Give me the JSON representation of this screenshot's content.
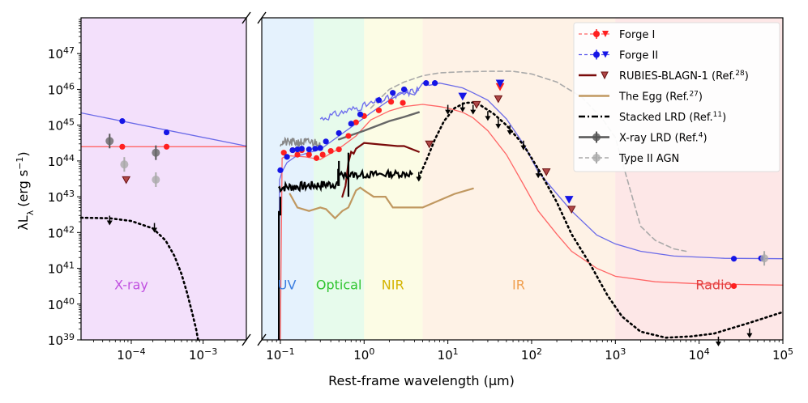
{
  "chart_data": {
    "type": "sed",
    "title": "",
    "xlabel": "Rest-frame wavelength (μm)",
    "ylabel": "λL",
    "ylabel_sub": "λ",
    "ylabel_units": "(erg s",
    "ylabel_exp": "−1",
    "ylabel_close": ")",
    "xscale": "log",
    "yscale": "log",
    "ylim": [
      1e+39,
      1e+48
    ],
    "left_panel": {
      "xlim": [
        2e-05,
        0.004
      ]
    },
    "right_panel": {
      "xlim": [
        0.06,
        100000
      ]
    },
    "y_ticks": [
      {
        "value": 39,
        "base": "10",
        "exp": "39"
      },
      {
        "value": 40,
        "base": "10",
        "exp": "40"
      },
      {
        "value": 41,
        "base": "10",
        "exp": "41"
      },
      {
        "value": 42,
        "base": "10",
        "exp": "42"
      },
      {
        "value": 43,
        "base": "10",
        "exp": "43"
      },
      {
        "value": 44,
        "base": "10",
        "exp": "44"
      },
      {
        "value": 45,
        "base": "10",
        "exp": "45"
      },
      {
        "value": 46,
        "base": "10",
        "exp": "46"
      },
      {
        "value": 47,
        "base": "10",
        "exp": "47"
      }
    ],
    "left_x_ticks": [
      {
        "value": -4,
        "base": "10",
        "exp": "−4"
      },
      {
        "value": -3,
        "base": "10",
        "exp": "−3"
      }
    ],
    "right_x_ticks": [
      {
        "value": -1,
        "base": "10",
        "exp": "−1"
      },
      {
        "value": 0,
        "base": "10",
        "exp": "0"
      },
      {
        "value": 1,
        "base": "10",
        "exp": "1"
      },
      {
        "value": 2,
        "base": "10",
        "exp": "2"
      },
      {
        "value": 3,
        "base": "10",
        "exp": "3"
      },
      {
        "value": 4,
        "base": "10",
        "exp": "4"
      },
      {
        "value": 5,
        "base": "10",
        "exp": "5"
      }
    ],
    "bands": [
      {
        "name": "X-ray",
        "panel": "left",
        "x0": 2e-05,
        "x1": 0.004,
        "color": "#e9c7f7",
        "text_color": "#c04fe0",
        "label_x": 0.0001,
        "label_y": 3.5e+40
      },
      {
        "name": "UV",
        "panel": "right",
        "x0": 0.06,
        "x1": 0.25,
        "color": "#cfe7fb",
        "text_color": "#3b7ee0",
        "label_x": 0.12,
        "label_y": 3.5e+40
      },
      {
        "name": "Optical",
        "panel": "right",
        "x0": 0.25,
        "x1": 1.0,
        "color": "#d4f8dc",
        "text_color": "#2ec42e",
        "label_x": 0.5,
        "label_y": 3.5e+40
      },
      {
        "name": "NIR",
        "panel": "right",
        "x0": 1.0,
        "x1": 5.0,
        "color": "#fafad0",
        "text_color": "#d4b400",
        "label_x": 2.2,
        "label_y": 3.5e+40
      },
      {
        "name": "IR",
        "panel": "right",
        "x0": 5.0,
        "x1": 1000,
        "color": "#fde8d2",
        "text_color": "#f0a050",
        "label_x": 70,
        "label_y": 3.5e+40
      },
      {
        "name": "Radio",
        "panel": "right",
        "x0": 1000,
        "x1": 100000,
        "color": "#fcd3d3",
        "text_color": "#e04040",
        "label_x": 15000,
        "label_y": 3.5e+40
      }
    ],
    "legend": [
      {
        "label": "Forge I",
        "sup": "",
        "color": "#ff2020",
        "kind": "forge"
      },
      {
        "label": "Forge II",
        "sup": "",
        "color": "#1515e6",
        "kind": "forge"
      },
      {
        "label": "RUBIES-BLAGN-1 (Ref.",
        "sup": "28",
        "close": ")",
        "color": "#7a0a0a",
        "kind": "rubies"
      },
      {
        "label": "The Egg (Ref.",
        "sup": "27",
        "close": ")",
        "color": "#c09860",
        "kind": "line"
      },
      {
        "label": "Stacked LRD (Ref.",
        "sup": "11",
        "close": ")",
        "color": "#000000",
        "kind": "dashdot"
      },
      {
        "label": "X-ray LRD (Ref.",
        "sup": "4",
        "close": ")",
        "color": "#555555",
        "kind": "errpoint"
      },
      {
        "label": "Type II AGN",
        "sup": "",
        "close": "",
        "color": "#aaaaaa",
        "kind": "dashedpoint"
      }
    ],
    "series": [
      {
        "name": "Forge II model left",
        "panel": "left",
        "color": "#6a6ae8",
        "type": "line",
        "points": [
          [
            2e-05,
            2.2e+45
          ],
          [
            0.004,
            2.6e+44
          ]
        ]
      },
      {
        "name": "Forge I model left",
        "panel": "left",
        "color": "#ff6666",
        "type": "line",
        "points": [
          [
            2e-05,
            2.5e+44
          ],
          [
            0.004,
            2.5e+44
          ]
        ]
      },
      {
        "name": "Stacked LRD left",
        "panel": "left",
        "color": "#000000",
        "type": "dotted",
        "points": [
          [
            2e-05,
            2.6e+42
          ],
          [
            5e-05,
            2.5e+42
          ],
          [
            0.0001,
            2.1e+42
          ],
          [
            0.0002,
            1.3e+42
          ],
          [
            0.0003,
            6e+41
          ],
          [
            0.0004,
            2.2e+41
          ],
          [
            0.0005,
            7e+40
          ],
          [
            0.0006,
            2e+40
          ],
          [
            0.0007,
            6e+39
          ],
          [
            0.0008,
            2e+39
          ],
          [
            0.00085,
            1e+39
          ]
        ]
      },
      {
        "name": "Forge II model",
        "panel": "right",
        "color": "#6a6ae8",
        "type": "line",
        "points": [
          [
            0.09,
            1e+39
          ],
          [
            0.095,
            1e+39
          ],
          [
            0.098,
            3e+43
          ],
          [
            0.105,
            5e+43
          ],
          [
            0.12,
            9e+43
          ],
          [
            0.15,
            1.3e+44
          ],
          [
            0.2,
            1.6e+44
          ],
          [
            0.3,
            2.1e+44
          ],
          [
            0.5,
            5e+44
          ],
          [
            0.8,
            1.1e+45
          ],
          [
            1.2,
            2.2e+45
          ],
          [
            2,
            5e+45
          ],
          [
            3,
            8.5e+45
          ],
          [
            4,
            7e+45
          ],
          [
            5,
            1.5e+46
          ],
          [
            6,
            1.3e+46
          ],
          [
            8,
            1.5e+46
          ],
          [
            10,
            1.35e+46
          ],
          [
            15,
            1.1e+46
          ],
          [
            20,
            8e+45
          ],
          [
            30,
            5e+45
          ],
          [
            50,
            1.5e+45
          ],
          [
            80,
            3e+44
          ],
          [
            120,
            5e+43
          ],
          [
            200,
            1.2e+43
          ],
          [
            300,
            4e+42
          ],
          [
            600,
            8.5e+41
          ],
          [
            1000,
            4.8e+41
          ],
          [
            2000,
            3e+41
          ],
          [
            5000,
            2.2e+41
          ],
          [
            20000,
            1.9e+41
          ],
          [
            100000,
            1.85e+41
          ]
        ]
      },
      {
        "name": "Forge I model",
        "panel": "right",
        "color": "#ff6666",
        "type": "line",
        "points": [
          [
            0.1,
            1e+39
          ],
          [
            0.105,
            1.2e+44
          ],
          [
            0.12,
            1.4e+44
          ],
          [
            0.2,
            1.3e+44
          ],
          [
            0.3,
            1.1e+44
          ],
          [
            0.5,
            2.2e+44
          ],
          [
            0.8,
            5e+44
          ],
          [
            1.2,
            1.4e+45
          ],
          [
            2,
            2.5e+45
          ],
          [
            3,
            3.3e+45
          ],
          [
            5,
            3.8e+45
          ],
          [
            8,
            3.3e+45
          ],
          [
            10,
            3e+45
          ],
          [
            15,
            2.3e+45
          ],
          [
            20,
            1.6e+45
          ],
          [
            30,
            7e+44
          ],
          [
            50,
            1.5e+44
          ],
          [
            80,
            2.2e+43
          ],
          [
            120,
            4e+42
          ],
          [
            200,
            9e+41
          ],
          [
            300,
            3e+41
          ],
          [
            600,
            1e+41
          ],
          [
            1000,
            6e+40
          ],
          [
            3000,
            4.2e+40
          ],
          [
            10000,
            3.7e+40
          ],
          [
            100000,
            3.4e+40
          ]
        ]
      },
      {
        "name": "Type II AGN",
        "panel": "right",
        "color": "#aaaaaa",
        "type": "dashed",
        "points": [
          [
            1.2,
            3e+45
          ],
          [
            1.6,
            6e+45
          ],
          [
            2,
            1e+46
          ],
          [
            3,
            1.6e+46
          ],
          [
            5,
            2.4e+46
          ],
          [
            8,
            2.9e+46
          ],
          [
            15,
            3.1e+46
          ],
          [
            30,
            3.2e+46
          ],
          [
            60,
            3.2e+46
          ],
          [
            100,
            2.7e+46
          ],
          [
            200,
            1.6e+46
          ],
          [
            400,
            6e+45
          ],
          [
            700,
            1.5e+45
          ],
          [
            1000,
            4.5e+44
          ],
          [
            2000,
            1.5e+42
          ],
          [
            3000,
            6e+41
          ],
          [
            5000,
            3.5e+41
          ],
          [
            7000,
            3e+41
          ]
        ]
      },
      {
        "name": "RUBIES-BLAGN-1",
        "panel": "right",
        "color": "#7a0a0a",
        "type": "line",
        "points": [
          [
            0.55,
            1e+43
          ],
          [
            0.6,
            2e+43
          ],
          [
            0.65,
            9e+43
          ],
          [
            0.7,
            1.8e+44
          ],
          [
            0.75,
            1.6e+44
          ],
          [
            0.8,
            2.2e+44
          ],
          [
            1.0,
            3.2e+44
          ],
          [
            1.5,
            2.9e+44
          ],
          [
            2.5,
            2.6e+44
          ],
          [
            3,
            2.6e+44
          ],
          [
            4.5,
            1.8e+44
          ]
        ]
      },
      {
        "name": "The Egg",
        "panel": "right",
        "color": "#c09860",
        "type": "line",
        "points": [
          [
            0.13,
            1.2e+43
          ],
          [
            0.16,
            5e+42
          ],
          [
            0.22,
            4e+42
          ],
          [
            0.3,
            5e+42
          ],
          [
            0.35,
            4.5e+42
          ],
          [
            0.45,
            2.5e+42
          ],
          [
            0.55,
            4e+42
          ],
          [
            0.65,
            5e+42
          ],
          [
            0.8,
            1.5e+43
          ],
          [
            0.9,
            1.8e+43
          ],
          [
            1.0,
            1.5e+43
          ],
          [
            1.3,
            1e+43
          ],
          [
            1.8,
            1e+43
          ],
          [
            2.2,
            5e+42
          ],
          [
            3,
            5e+42
          ],
          [
            5,
            5e+42
          ],
          [
            8,
            8e+42
          ],
          [
            12,
            1.2e+43
          ],
          [
            20,
            1.7e+43
          ]
        ]
      },
      {
        "name": "X-ray LRD",
        "panel": "right",
        "color": "#666666",
        "type": "line",
        "points": [
          [
            0.5,
            4e+44
          ],
          [
            1,
            7e+44
          ],
          [
            2,
            1.3e+45
          ],
          [
            3,
            1.7e+45
          ],
          [
            4.5,
            2.3e+45
          ]
        ]
      },
      {
        "name": "Stacked LRD",
        "panel": "right",
        "color": "#000000",
        "type": "dotted",
        "points": [
          [
            4.5,
            3.5e+43
          ],
          [
            5.5,
            1e+44
          ],
          [
            7,
            4e+44
          ],
          [
            9,
            1.3e+45
          ],
          [
            12,
            3e+45
          ],
          [
            16,
            4.2e+45
          ],
          [
            20,
            4.3e+45
          ],
          [
            25,
            3.5e+45
          ],
          [
            35,
            2.1e+45
          ],
          [
            50,
            1e+45
          ],
          [
            80,
            2.8e+44
          ],
          [
            120,
            6e+43
          ],
          [
            200,
            7e+42
          ],
          [
            300,
            9e+41
          ],
          [
            500,
            1.3e+41
          ],
          [
            800,
            1.8e+40
          ],
          [
            1200,
            4.5e+39
          ],
          [
            2000,
            1.7e+39
          ],
          [
            4000,
            1.15e+39
          ],
          [
            8000,
            1.25e+39
          ],
          [
            15000,
            1.5e+39
          ],
          [
            40000,
            3e+39
          ],
          [
            100000,
            6e+39
          ]
        ]
      },
      {
        "name": "Forge I points",
        "panel": "right",
        "color": "#ff2020",
        "type": "points",
        "points": [
          [
            0.11,
            1.7e+44
          ],
          [
            0.14,
            2e+44
          ],
          [
            0.16,
            1.5e+44
          ],
          [
            0.18,
            2e+44
          ],
          [
            0.22,
            1.5e+44
          ],
          [
            0.27,
            1.2e+44
          ],
          [
            0.32,
            1.5e+44
          ],
          [
            0.4,
            1.9e+44
          ],
          [
            0.5,
            2.1e+44
          ],
          [
            0.65,
            5e+44
          ],
          [
            0.8,
            1.2e+45
          ],
          [
            1.0,
            1.8e+45
          ],
          [
            1.5,
            2.6e+45
          ],
          [
            2.1,
            4.5e+45
          ],
          [
            2.9,
            4.2e+45
          ],
          [
            26000,
            3.2e+40
          ]
        ]
      },
      {
        "name": "Forge II points",
        "panel": "right",
        "color": "#1515e6",
        "type": "points",
        "points": [
          [
            0.1,
            5.5e+43
          ],
          [
            0.12,
            1.3e+44
          ],
          [
            0.14,
            2e+44
          ],
          [
            0.16,
            2.1e+44
          ],
          [
            0.18,
            2.2e+44
          ],
          [
            0.22,
            2.1e+44
          ],
          [
            0.26,
            2.2e+44
          ],
          [
            0.3,
            2.3e+44
          ],
          [
            0.35,
            3.5e+44
          ],
          [
            0.5,
            6e+44
          ],
          [
            0.7,
            1.1e+45
          ],
          [
            0.9,
            2e+45
          ],
          [
            1.5,
            5e+45
          ],
          [
            2.2,
            8e+45
          ],
          [
            3,
            1e+46
          ],
          [
            5.5,
            1.5e+46
          ],
          [
            7,
            1.5e+46
          ],
          [
            26000,
            1.85e+41
          ],
          [
            55000,
            1.9e+41
          ]
        ]
      },
      {
        "name": "Forge I points left",
        "panel": "left",
        "color": "#ff2020",
        "type": "points",
        "points": [
          [
            7.5e-05,
            2.5e+44
          ],
          [
            0.00031,
            2.5e+44
          ]
        ]
      },
      {
        "name": "Forge II points left",
        "panel": "left",
        "color": "#1515e6",
        "type": "points",
        "points": [
          [
            7.5e-05,
            1.3e+45
          ],
          [
            0.00031,
            6.3e+44
          ]
        ]
      }
    ],
    "xray_lrd_points": [
      [
        5e-05,
        3.6e+44
      ],
      [
        0.00022,
        1.7e+44
      ]
    ],
    "type2_points": [
      [
        8e-05,
        8e+43
      ],
      [
        0.00022,
        3e+43
      ],
      [
        60000,
        1.9e+41
      ]
    ],
    "forge1_triangles": [
      [
        42,
        1.2e+46
      ]
    ],
    "forge2_triangles": [
      [
        15,
        6.5e+45
      ],
      [
        42,
        1.5e+46
      ],
      [
        280,
        8.5e+42
      ]
    ],
    "rubies_triangles": [
      [
        8.5e-05,
        3e+43
      ],
      [
        6,
        3e+44
      ],
      [
        22,
        3.8e+45
      ],
      [
        40,
        5.5e+45
      ],
      [
        150,
        5e+43
      ],
      [
        300,
        4.5e+42
      ]
    ],
    "lrd_upper_limits": [
      [
        5e-05,
        2.4e+42
      ],
      [
        0.00021,
        1.5e+42
      ],
      [
        4.5,
        4e+43
      ],
      [
        10,
        3e+45
      ],
      [
        15,
        3.5e+45
      ],
      [
        20,
        3e+45
      ],
      [
        30,
        2e+45
      ],
      [
        40,
        1.2e+45
      ],
      [
        55,
        8e+44
      ],
      [
        80,
        3e+44
      ],
      [
        120,
        5e+43
      ],
      [
        17000,
        1e+39
      ],
      [
        40000,
        1.7e+39
      ]
    ]
  }
}
